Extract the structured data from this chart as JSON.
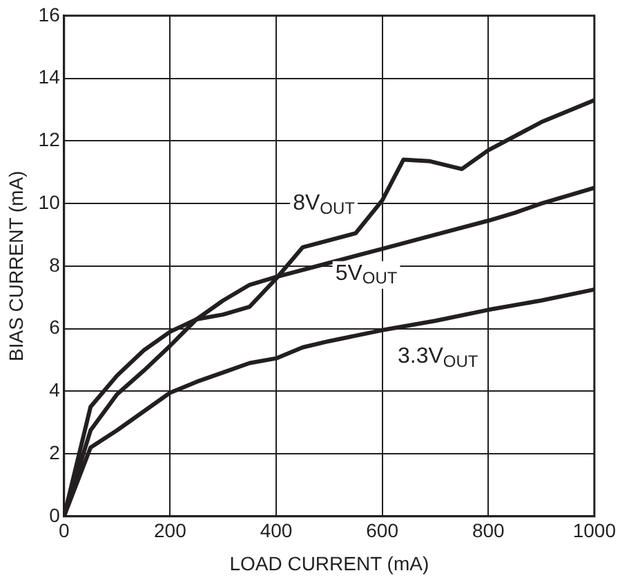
{
  "chart_data": {
    "type": "line",
    "xlabel": "LOAD CURRENT (mA)",
    "ylabel": "BIAS CURRENT (mA)",
    "xlim": [
      0,
      1000
    ],
    "xticks": [
      0,
      200,
      400,
      600,
      800,
      1000
    ],
    "ylim": [
      0,
      16
    ],
    "yticks": [
      0,
      2,
      4,
      6,
      8,
      10,
      12,
      14,
      16
    ],
    "grid": true,
    "legend": false,
    "marker": "none",
    "line_style": "solid",
    "series": [
      {
        "name": "8V$_{OUT}$",
        "color": "#231f20",
        "x": [
          0,
          50,
          100,
          150,
          200,
          250,
          300,
          350,
          400,
          450,
          550,
          600,
          640,
          690,
          750,
          800,
          900,
          1000
        ],
        "values": [
          0,
          3.5,
          4.5,
          5.3,
          5.9,
          6.3,
          6.45,
          6.7,
          7.6,
          8.6,
          9.05,
          10.1,
          11.4,
          11.35,
          11.1,
          11.7,
          12.6,
          13.3
        ]
      },
      {
        "name": "5V$_{OUT}$",
        "color": "#231f20",
        "x": [
          0,
          50,
          100,
          150,
          200,
          250,
          300,
          350,
          400,
          500,
          600,
          700,
          800,
          850,
          900,
          1000
        ],
        "values": [
          0,
          2.75,
          3.9,
          4.65,
          5.45,
          6.3,
          6.9,
          7.4,
          7.65,
          8.1,
          8.55,
          9.0,
          9.45,
          9.7,
          10.0,
          10.5
        ]
      },
      {
        "name": "3.3V$_{OUT}$",
        "color": "#231f20",
        "x": [
          0,
          50,
          100,
          150,
          200,
          250,
          300,
          350,
          400,
          450,
          500,
          600,
          700,
          800,
          900,
          1000
        ],
        "values": [
          0,
          2.2,
          2.75,
          3.35,
          3.95,
          4.3,
          4.6,
          4.9,
          5.05,
          5.4,
          5.6,
          5.95,
          6.25,
          6.6,
          6.9,
          7.25
        ]
      }
    ]
  }
}
